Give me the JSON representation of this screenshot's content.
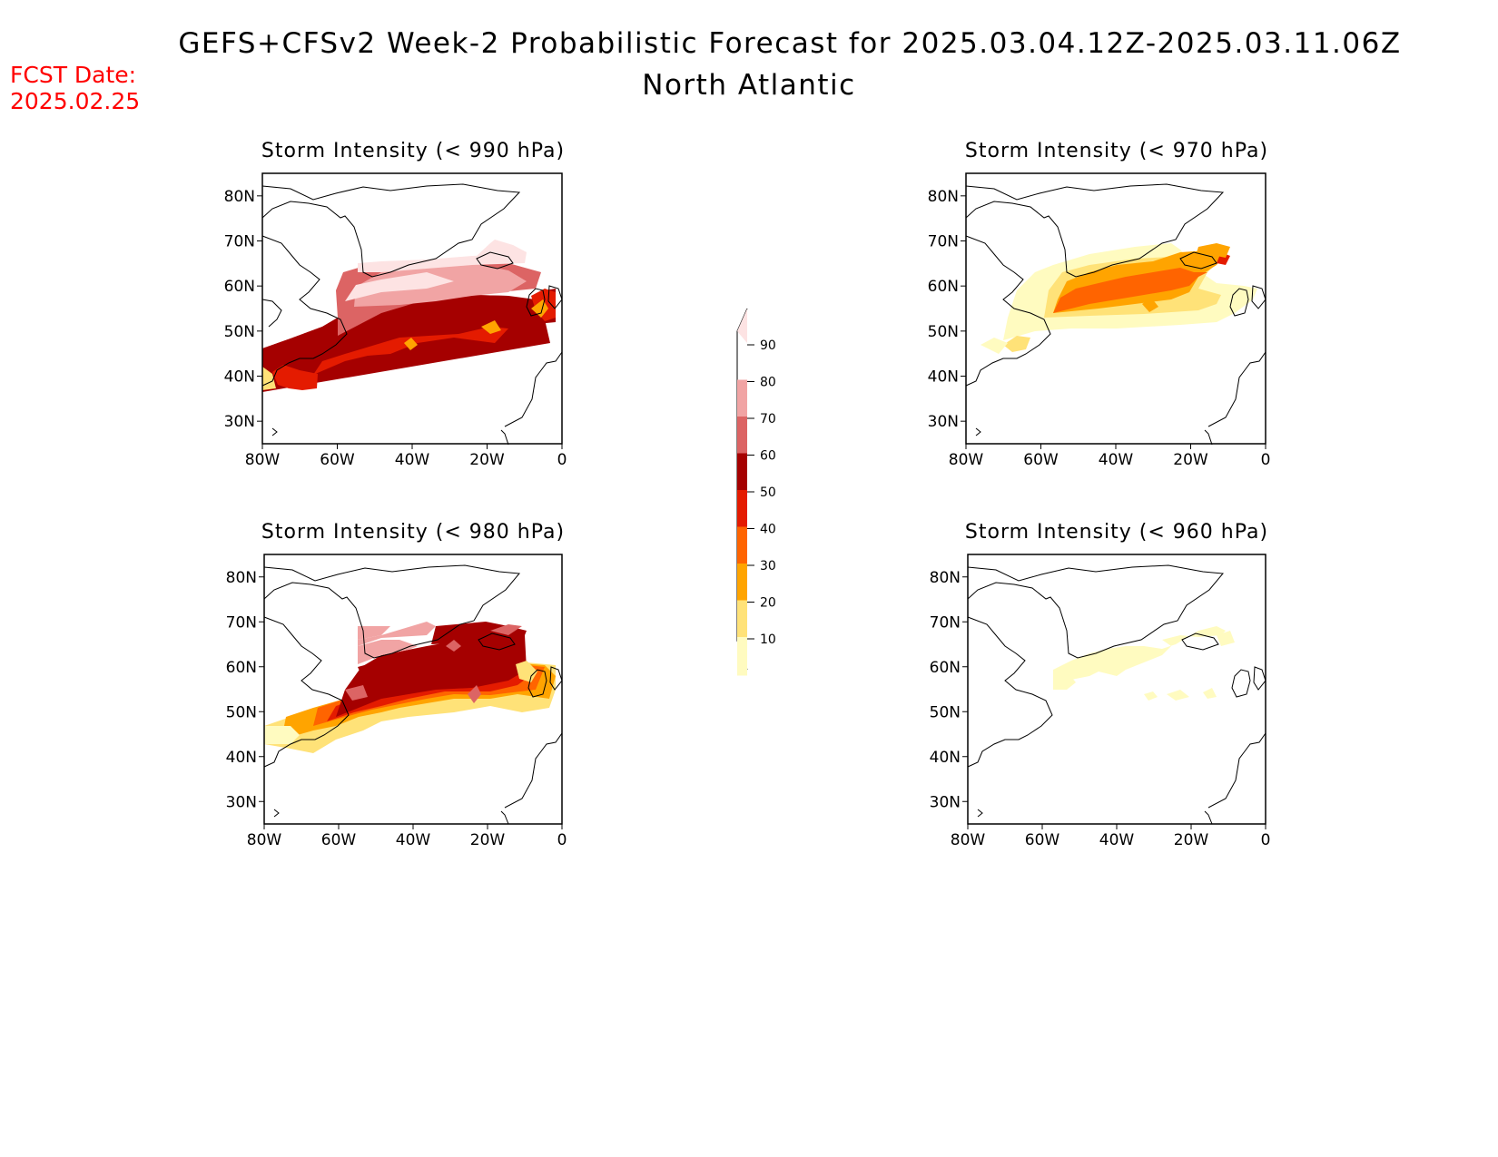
{
  "header": {
    "title": "GEFS+CFSv2 Week-2 Probabilistic Forecast for 2025.03.04.12Z-2025.03.11.06Z",
    "subtitle": "North Atlantic",
    "fcst_label": "FCST Date:",
    "fcst_value": "2025.02.25"
  },
  "axes": {
    "lat_ticks": [
      "80N",
      "70N",
      "60N",
      "50N",
      "40N",
      "30N"
    ],
    "lon_ticks": [
      "80W",
      "60W",
      "40W",
      "20W",
      "0"
    ]
  },
  "colorbar": {
    "levels": [
      "10",
      "20",
      "30",
      "40",
      "50",
      "60",
      "70",
      "80",
      "90"
    ],
    "colors": [
      "#fffbc0",
      "#ffe278",
      "#ffa400",
      "#ff6400",
      "#e41b00",
      "#a50000",
      "#dc6464",
      "#f1a4a4",
      "#fde3e3"
    ]
  },
  "panels": [
    {
      "id": "p990",
      "title": "Storm Intensity (< 990 hPa)"
    },
    {
      "id": "p970",
      "title": "Storm Intensity (< 970 hPa)"
    },
    {
      "id": "p980",
      "title": "Storm Intensity (< 980 hPa)"
    },
    {
      "id": "p960",
      "title": "Storm Intensity (< 960 hPa)"
    }
  ]
}
